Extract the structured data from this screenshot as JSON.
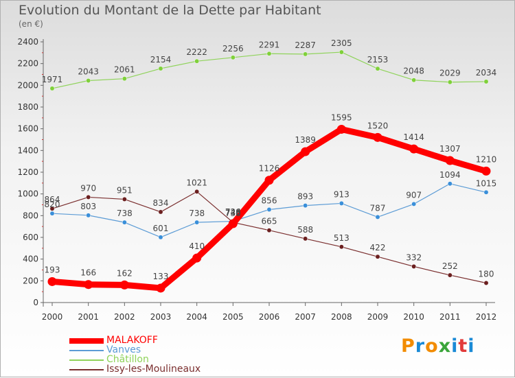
{
  "title": "Evolution du Montant de la Dette par Habitant",
  "subtitle": "(en €)",
  "logo": {
    "text": "Proxiti",
    "colors": [
      "#f28c00",
      "#1a8ad6",
      "#f28c00",
      "#3aa53a",
      "#1a8ad6",
      "#e23b3b",
      "#1a8ad6"
    ]
  },
  "chart_data": {
    "type": "line",
    "title": "Evolution du Montant de la Dette par Habitant",
    "subtitle": "(en €)",
    "x": [
      2000,
      2001,
      2002,
      2003,
      2004,
      2005,
      2006,
      2007,
      2008,
      2009,
      2010,
      2011,
      2012
    ],
    "ylim": [
      0,
      2400
    ],
    "yticks": [
      0,
      200,
      400,
      600,
      800,
      1000,
      1200,
      1400,
      1600,
      1800,
      2000,
      2200,
      2400
    ],
    "grid": false,
    "legend_position": "bottom-left",
    "series": [
      {
        "name": "MALAKOFF",
        "color": "#ff0000",
        "values": [
          193,
          166,
          162,
          133,
          410,
          726,
          1126,
          1389,
          1595,
          1520,
          1414,
          1307,
          1210
        ]
      },
      {
        "name": "Vanves",
        "color": "#5b9bd5",
        "values": [
          820,
          803,
          738,
          601,
          738,
          748,
          856,
          893,
          913,
          787,
          907,
          1094,
          1015
        ]
      },
      {
        "name": "Châtillon",
        "color": "#8fd35a",
        "values": [
          1971,
          2043,
          2061,
          2154,
          2222,
          2256,
          2291,
          2287,
          2305,
          2153,
          2048,
          2029,
          2034
        ]
      },
      {
        "name": "Issy-les-Moulineaux",
        "color": "#7a2e2e",
        "values": [
          864,
          970,
          951,
          834,
          1021,
          738,
          665,
          588,
          513,
          422,
          332,
          252,
          180
        ]
      }
    ],
    "point_labels": [
      [
        "193",
        "166",
        "162",
        "133",
        "410",
        "726",
        "1126",
        "1389",
        "1595",
        "1520",
        "1414",
        "1307",
        "1210"
      ],
      [
        "820",
        "803",
        "738",
        "601",
        "738",
        "748",
        "856",
        "893",
        "913",
        "787",
        "907",
        "1094",
        "1015"
      ],
      [
        "1971",
        "2043",
        "2061",
        "2154",
        "2222",
        "2256",
        "2291",
        "2287",
        "2305",
        "2153",
        "2048",
        "2029",
        "2034"
      ],
      [
        "864",
        "970",
        "951",
        "834",
        "1021",
        "738",
        "665",
        "588",
        "513",
        "422",
        "332",
        "252",
        "180"
      ]
    ]
  }
}
